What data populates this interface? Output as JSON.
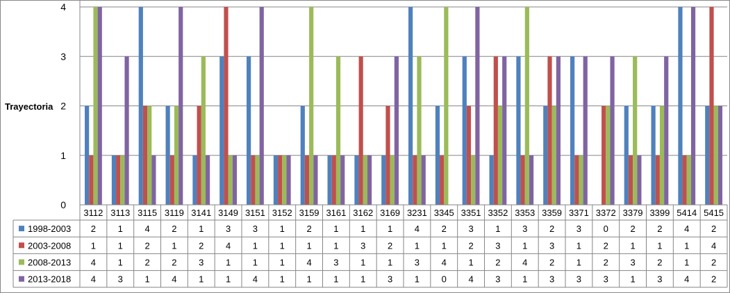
{
  "chart_data": {
    "type": "bar",
    "ylabel": "Trayectoria",
    "ylim": [
      0,
      4
    ],
    "yticks": [
      0,
      1,
      2,
      3,
      4
    ],
    "grid": true,
    "legend": "table-below",
    "categories": [
      "3112",
      "3113",
      "3115",
      "3119",
      "3141",
      "3149",
      "3151",
      "3152",
      "3159",
      "3161",
      "3162",
      "3169",
      "3231",
      "3345",
      "3351",
      "3352",
      "3353",
      "3359",
      "3371",
      "3372",
      "3379",
      "3399",
      "5414",
      "5415"
    ],
    "series": [
      {
        "name": "1998-2003",
        "color": "#4F81BD",
        "values": [
          2,
          1,
          4,
          2,
          1,
          3,
          3,
          1,
          2,
          1,
          1,
          1,
          4,
          2,
          3,
          1,
          3,
          2,
          3,
          0,
          2,
          2,
          4,
          2
        ]
      },
      {
        "name": "2003-2008",
        "color": "#C0504D",
        "values": [
          1,
          1,
          2,
          1,
          2,
          4,
          1,
          1,
          1,
          1,
          3,
          2,
          1,
          1,
          2,
          3,
          1,
          3,
          1,
          2,
          1,
          1,
          1,
          4
        ]
      },
      {
        "name": "2008-2013",
        "color": "#9BBB59",
        "values": [
          4,
          1,
          2,
          2,
          3,
          1,
          1,
          1,
          4,
          3,
          1,
          1,
          3,
          4,
          1,
          2,
          4,
          2,
          1,
          2,
          3,
          2,
          1,
          2
        ]
      },
      {
        "name": "2013-2018",
        "color": "#8064A2",
        "values": [
          4,
          3,
          1,
          4,
          1,
          1,
          4,
          1,
          1,
          1,
          1,
          3,
          1,
          0,
          4,
          3,
          1,
          3,
          3,
          3,
          1,
          3,
          4,
          2
        ]
      }
    ]
  }
}
